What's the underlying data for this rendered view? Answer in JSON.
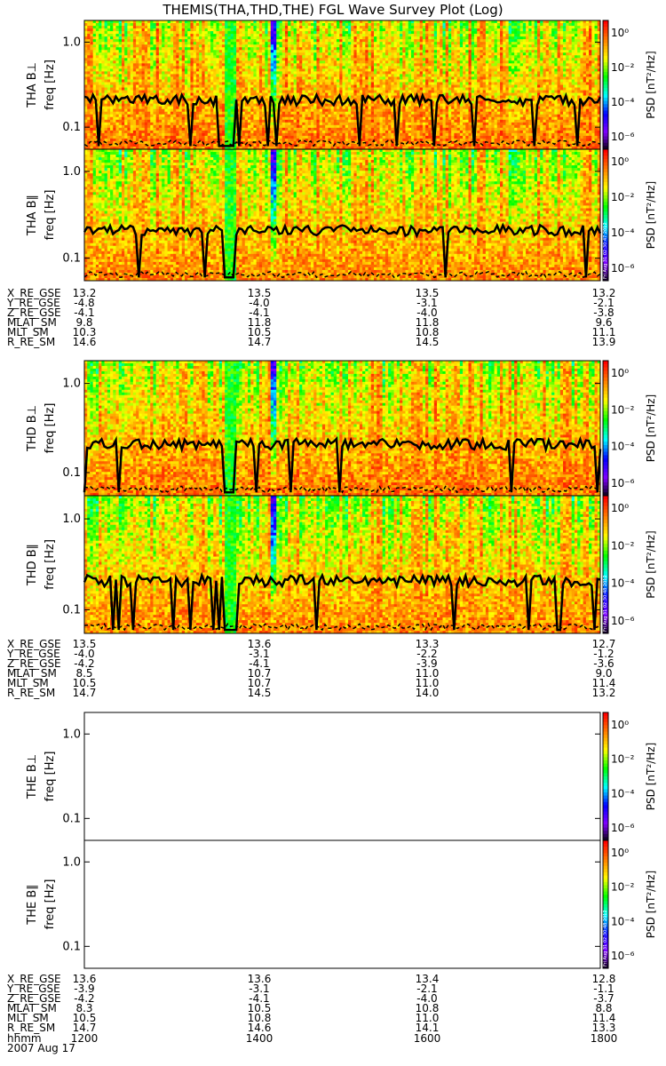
{
  "title": "THEMIS(THA,THD,THE) FGL Wave Survey Plot (Log)",
  "colors": {
    "background": "#ffffff",
    "foreground": "#000000"
  },
  "chart_data": {
    "type": "heatmap",
    "y_scale": "log",
    "y_ticks": [
      "1.0",
      "0.1"
    ],
    "colorbar": {
      "label": "PSD [nT²/Hz]",
      "ticks": [
        "10⁰",
        "10⁻²",
        "10⁻⁴",
        "10⁻⁶"
      ],
      "colors": [
        "#ff0000",
        "#ff8000",
        "#ffff00",
        "#00ff00",
        "#00ffff",
        "#0000ff",
        "#8000ff",
        "#000000"
      ]
    },
    "time_axis": {
      "label": "hhmm",
      "ticks": [
        "1200",
        "1400",
        "1600",
        "1800"
      ],
      "date": "2007 Aug 17"
    },
    "panels": [
      {
        "label": "THA B⊥",
        "ylabel": "freq [Hz]",
        "has_data": true
      },
      {
        "label": "THA B∥",
        "ylabel": "freq [Hz]",
        "has_data": true,
        "stamp": "Fri Aug 31 02:30:47 2012"
      },
      {
        "label": "THD B⊥",
        "ylabel": "freq [Hz]",
        "has_data": true
      },
      {
        "label": "THD B∥",
        "ylabel": "freq [Hz]",
        "has_data": true,
        "stamp": "Fri Aug 31 02:30:48 2012"
      },
      {
        "label": "THE B⊥",
        "ylabel": "freq [Hz]",
        "has_data": false
      },
      {
        "label": "THE B∥",
        "ylabel": "freq [Hz]",
        "has_data": false,
        "stamp": "Fri Aug 31 02:30:48 2012"
      }
    ],
    "ephemeris": [
      {
        "probe": "THA",
        "rows": [
          {
            "name": "X_RE_GSE",
            "values": [
              "13.2",
              "13.5",
              "13.5",
              "13.2"
            ]
          },
          {
            "name": "Y_RE_GSE",
            "values": [
              "-4.8",
              "-4.0",
              "-3.1",
              "-2.1"
            ]
          },
          {
            "name": "Z_RE_GSE",
            "values": [
              "-4.1",
              "-4.1",
              "-4.0",
              "-3.8"
            ]
          },
          {
            "name": "MLAT_SM",
            "values": [
              "9.8",
              "11.8",
              "11.8",
              "9.6"
            ]
          },
          {
            "name": "MLT_SM",
            "values": [
              "10.3",
              "10.5",
              "10.8",
              "11.1"
            ]
          },
          {
            "name": "R_RE_SM",
            "values": [
              "14.6",
              "14.7",
              "14.5",
              "13.9"
            ]
          }
        ]
      },
      {
        "probe": "THD",
        "rows": [
          {
            "name": "X_RE_GSE",
            "values": [
              "13.5",
              "13.6",
              "13.3",
              "12.7"
            ]
          },
          {
            "name": "Y_RE_GSE",
            "values": [
              "-4.0",
              "-3.1",
              "-2.2",
              "-1.2"
            ]
          },
          {
            "name": "Z_RE_GSE",
            "values": [
              "-4.2",
              "-4.1",
              "-3.9",
              "-3.6"
            ]
          },
          {
            "name": "MLAT_SM",
            "values": [
              "8.5",
              "10.7",
              "11.0",
              "9.0"
            ]
          },
          {
            "name": "MLT_SM",
            "values": [
              "10.5",
              "10.7",
              "11.0",
              "11.4"
            ]
          },
          {
            "name": "R_RE_SM",
            "values": [
              "14.7",
              "14.5",
              "14.0",
              "13.2"
            ]
          }
        ]
      },
      {
        "probe": "THE",
        "rows": [
          {
            "name": "X_RE_GSE",
            "values": [
              "13.6",
              "13.6",
              "13.4",
              "12.8"
            ]
          },
          {
            "name": "Y_RE_GSE",
            "values": [
              "-3.9",
              "-3.1",
              "-2.1",
              "-1.1"
            ]
          },
          {
            "name": "Z_RE_GSE",
            "values": [
              "-4.2",
              "-4.1",
              "-4.0",
              "-3.7"
            ]
          },
          {
            "name": "MLAT_SM",
            "values": [
              "8.3",
              "10.5",
              "10.8",
              "8.8"
            ]
          },
          {
            "name": "MLT_SM",
            "values": [
              "10.5",
              "10.8",
              "11.0",
              "11.4"
            ]
          },
          {
            "name": "R_RE_SM",
            "values": [
              "14.7",
              "14.6",
              "14.1",
              "13.3"
            ]
          }
        ]
      }
    ]
  }
}
